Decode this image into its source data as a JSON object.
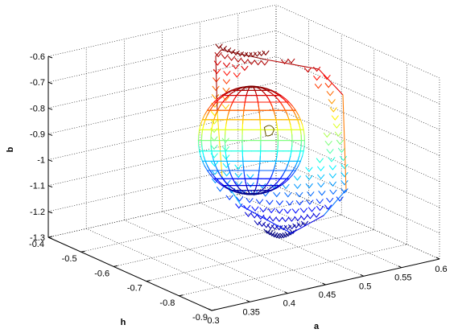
{
  "chart_data": {
    "type": "3d-mesh",
    "title": "",
    "xlabel": "a",
    "ylabel": "h",
    "zlabel": "b",
    "xlim": [
      0.3,
      0.6
    ],
    "ylim": [
      -0.9,
      -0.4
    ],
    "zlim": [
      -1.3,
      -0.6
    ],
    "x_ticks": [
      "0.3",
      "0.35",
      "0.4",
      "0.45",
      "0.5",
      "0.55",
      "0.6"
    ],
    "y_ticks": [
      "-0.4",
      "-0.5",
      "-0.6",
      "-0.7",
      "-0.8",
      "-0.9"
    ],
    "z_ticks": [
      "-0.6",
      "-0.7",
      "-0.8",
      "-0.9",
      "-1",
      "-1.1",
      "-1.2",
      "-1.3"
    ],
    "grid": true,
    "colormap": "jet",
    "series": [
      {
        "kind": "sphere-wireframe",
        "center": {
          "a": 0.46,
          "h": -0.65,
          "b": -0.89
        },
        "radius": 0.13
      },
      {
        "kind": "outer-mesh",
        "b_range": [
          -1.3,
          -0.6
        ]
      }
    ]
  }
}
